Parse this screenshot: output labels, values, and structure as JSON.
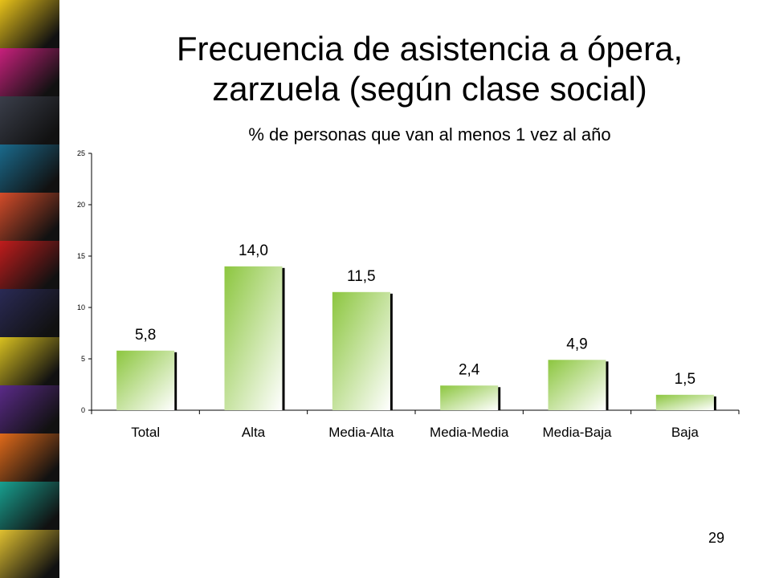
{
  "slide": {
    "title_line1": "Frecuencia de asistencia a ópera,",
    "title_line2": "zarzuela (según clase social)",
    "subtitle": "% de personas que van al menos 1 vez al año",
    "page_number": "29"
  },
  "decor": {
    "photo_strip_colors": [
      "#e8c21a",
      "#c8207c",
      "#3a3e4a",
      "#1a6a8c",
      "#d44c2a",
      "#c01c1c",
      "#2a2a55",
      "#d8c020",
      "#5a2a88",
      "#e06a1a",
      "#18a090",
      "#e0c030"
    ]
  },
  "chart_data": {
    "type": "bar",
    "categories": [
      "Total",
      "Alta",
      "Media-Alta",
      "Media-Media",
      "Media-Baja",
      "Baja"
    ],
    "values": [
      5.8,
      14.0,
      11.5,
      2.4,
      4.9,
      1.5
    ],
    "value_labels": [
      "5,8",
      "14,0",
      "11,5",
      "2,4",
      "4,9",
      "1,5"
    ],
    "ylim": [
      0,
      25
    ],
    "yticks": [
      0,
      5,
      10,
      15,
      20,
      25
    ],
    "grid": false,
    "legend": "none",
    "bar_color_top": "#8cc63f",
    "bar_color_bottom": "#ffffff"
  }
}
